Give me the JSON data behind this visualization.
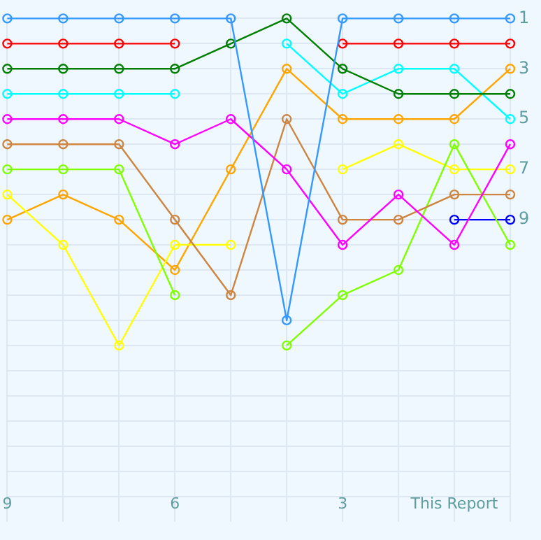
{
  "chart_data": {
    "type": "line",
    "categories": [
      "9",
      null,
      null,
      "6",
      null,
      null,
      "3",
      null,
      "This Report",
      null
    ],
    "series": [
      {
        "color": "#3399ff",
        "values": [
          1,
          1,
          1,
          1,
          1,
          13,
          1,
          1,
          1,
          1
        ]
      },
      {
        "color": "#ff0000",
        "values": [
          2,
          2,
          2,
          2,
          null,
          null,
          2,
          2,
          2,
          2
        ]
      },
      {
        "color": "#008000",
        "values": [
          3,
          3,
          3,
          3,
          2,
          1,
          3,
          4,
          4,
          4
        ]
      },
      {
        "color": "#00ffff",
        "values": [
          4,
          4,
          4,
          4,
          null,
          2,
          4,
          3,
          3,
          5
        ]
      },
      {
        "color": "#ff00ff",
        "values": [
          5,
          5,
          5,
          6,
          5,
          7,
          10,
          8,
          10,
          6
        ]
      },
      {
        "color": "#cd853f",
        "values": [
          6,
          6,
          6,
          9,
          12,
          5,
          9,
          9,
          8,
          8
        ]
      },
      {
        "color": "#80ff00",
        "values": [
          7,
          7,
          7,
          12,
          null,
          14,
          12,
          11,
          6,
          10
        ]
      },
      {
        "color": "#ffff00",
        "values": [
          8,
          10,
          14,
          10,
          10,
          null,
          7,
          6,
          7,
          7
        ]
      },
      {
        "color": "#ffa500",
        "values": [
          9,
          8,
          9,
          11,
          7,
          3,
          5,
          5,
          5,
          3
        ]
      },
      {
        "color": "#0000ff",
        "values": [
          null,
          null,
          null,
          null,
          null,
          null,
          null,
          null,
          9,
          9
        ]
      }
    ],
    "ylim": [
      21,
      1
    ],
    "yticks": [
      1,
      {
        "value": 2,
        "label": null
      },
      3,
      {
        "value": 4,
        "label": null
      },
      5,
      {
        "value": 6,
        "label": null
      },
      7,
      {
        "value": 8,
        "label": null
      },
      9,
      {
        "value": 10,
        "label": null
      },
      {
        "value": 11,
        "label": null
      },
      {
        "value": 12,
        "label": null
      },
      {
        "value": 13,
        "label": null
      },
      {
        "value": 14,
        "label": null
      },
      {
        "value": 15,
        "label": null
      },
      {
        "value": 16,
        "label": null
      },
      {
        "value": 17,
        "label": null
      },
      {
        "value": 18,
        "label": null
      },
      {
        "value": 19,
        "label": null
      },
      {
        "value": 20,
        "label": null
      }
    ],
    "grid": true,
    "legend": false,
    "marker": "circle"
  }
}
